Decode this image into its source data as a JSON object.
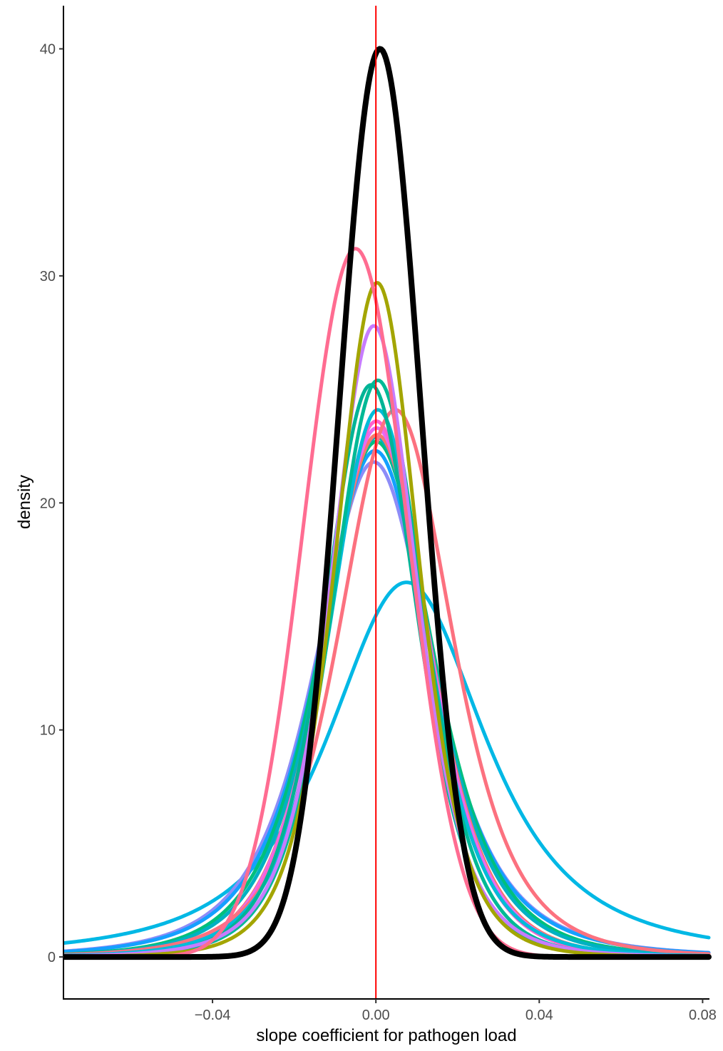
{
  "chart_data": {
    "type": "line",
    "title": "",
    "xlabel": "slope coefficient for pathogen load",
    "ylabel": "density",
    "xlim": [
      -0.0765,
      0.0815
    ],
    "ylim": [
      -1.85,
      41.9
    ],
    "x_ticks": [
      -0.04,
      0.0,
      0.04,
      0.08
    ],
    "x_tick_labels": [
      "−0.04",
      "0.00",
      "0.04",
      "0.08"
    ],
    "y_ticks": [
      0,
      10,
      20,
      30,
      40
    ],
    "y_tick_labels": [
      "0",
      "10",
      "20",
      "30",
      "40"
    ],
    "grid": false,
    "legend": "none",
    "reference_line": {
      "x": 0.0,
      "color": "#ff0000"
    },
    "series": [
      {
        "kind": "t",
        "mu": 0.0075,
        "sigma": 0.021,
        "df": 2,
        "color": "#00b8e5",
        "peak": 16.5
      },
      {
        "kind": "t",
        "mu": -0.0005,
        "sigma": 0.0152,
        "df": 3,
        "color": "#8d8cf7",
        "peak": 21.8
      },
      {
        "kind": "t",
        "mu": -0.0002,
        "sigma": 0.0148,
        "df": 3,
        "color": "#14a0ff",
        "peak": 22.3
      },
      {
        "kind": "t",
        "mu": 0.0001,
        "sigma": 0.0145,
        "df": 4,
        "color": "#00bf7d",
        "peak": 22.7
      },
      {
        "kind": "t",
        "mu": 0.0002,
        "sigma": 0.014,
        "df": 4,
        "color": "#00b1c2",
        "peak": 22.9
      },
      {
        "kind": "t",
        "mu": 0.0003,
        "sigma": 0.0135,
        "df": 5,
        "color": "#f8766d",
        "peak": 23.0
      },
      {
        "kind": "t",
        "mu": 0.0002,
        "sigma": 0.0133,
        "df": 5,
        "color": "#e76bf3",
        "peak": 23.3
      },
      {
        "kind": "t",
        "mu": 0.0001,
        "sigma": 0.013,
        "df": 5,
        "color": "#fe61cf",
        "peak": 23.6
      },
      {
        "kind": "t",
        "mu": 0.0048,
        "sigma": 0.0145,
        "df": 4,
        "color": "#fc717f",
        "peak": 24.1
      },
      {
        "kind": "t",
        "mu": 0.0005,
        "sigma": 0.0125,
        "df": 4,
        "color": "#00bcd8",
        "peak": 24.1
      },
      {
        "kind": "t",
        "mu": -0.0012,
        "sigma": 0.0118,
        "df": 5,
        "color": "#00b496",
        "peak": 25.2
      },
      {
        "kind": "t",
        "mu": 0.0005,
        "sigma": 0.0118,
        "df": 5,
        "color": "#00b996",
        "peak": 25.4
      },
      {
        "kind": "t",
        "mu": -0.0005,
        "sigma": 0.011,
        "df": 4,
        "color": "#c77cff",
        "peak": 27.8
      },
      {
        "kind": "t",
        "mu": 0.0003,
        "sigma": 0.0105,
        "df": 5,
        "color": "#a3a500",
        "peak": 29.7
      },
      {
        "kind": "normal",
        "mu": -0.005,
        "sigma": 0.0128,
        "color": "#ff6c91",
        "peak": 31.2
      },
      {
        "kind": "normal",
        "mu": 0.001,
        "sigma": 0.01,
        "color": "#000000",
        "peak": 40.0,
        "emphasis": true
      }
    ]
  }
}
